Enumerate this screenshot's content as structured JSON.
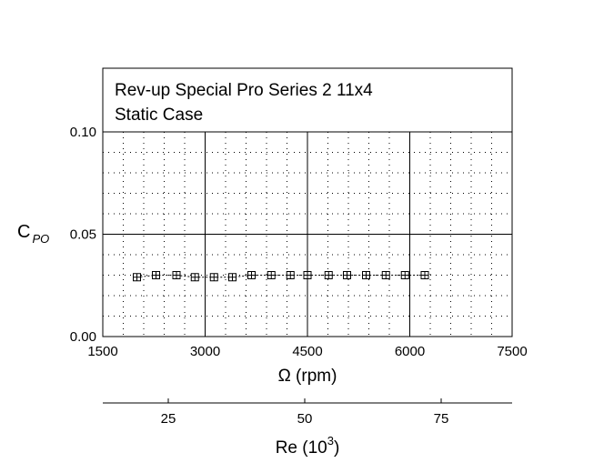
{
  "chart_data": {
    "type": "scatter",
    "title_lines": [
      "Rev-up Special Pro Series 2 11x4",
      "Static Case"
    ],
    "ylabel": {
      "main": "C",
      "sub": "PO"
    },
    "xlabel": "Ω (rpm)",
    "secondary_xlabel": {
      "main": "Re (10",
      "sup": "3",
      "end": ")"
    },
    "xlim": [
      1500,
      7500
    ],
    "ylim": [
      0.0,
      0.13
    ],
    "xticks": [
      1500,
      3000,
      4500,
      6000,
      7500
    ],
    "xtick_labels": [
      "1500",
      "3000",
      "4500",
      "6000",
      "7500"
    ],
    "yticks": [
      0.0,
      0.05,
      0.1
    ],
    "ytick_labels": [
      "0.00",
      "0.05",
      "0.10"
    ],
    "secondary_xlim": [
      13,
      88
    ],
    "secondary_xticks": [
      25,
      50,
      75
    ],
    "secondary_xtick_labels": [
      "25",
      "50",
      "75"
    ],
    "grid": true,
    "series": [
      {
        "marker": "square-plus",
        "x": [
          2000,
          2280,
          2580,
          2850,
          3130,
          3400,
          3680,
          3970,
          4250,
          4500,
          4810,
          5080,
          5360,
          5650,
          5930,
          6220
        ],
        "y": [
          0.029,
          0.03,
          0.03,
          0.029,
          0.029,
          0.029,
          0.03,
          0.03,
          0.03,
          0.03,
          0.03,
          0.03,
          0.03,
          0.03,
          0.03,
          0.03
        ]
      }
    ]
  }
}
